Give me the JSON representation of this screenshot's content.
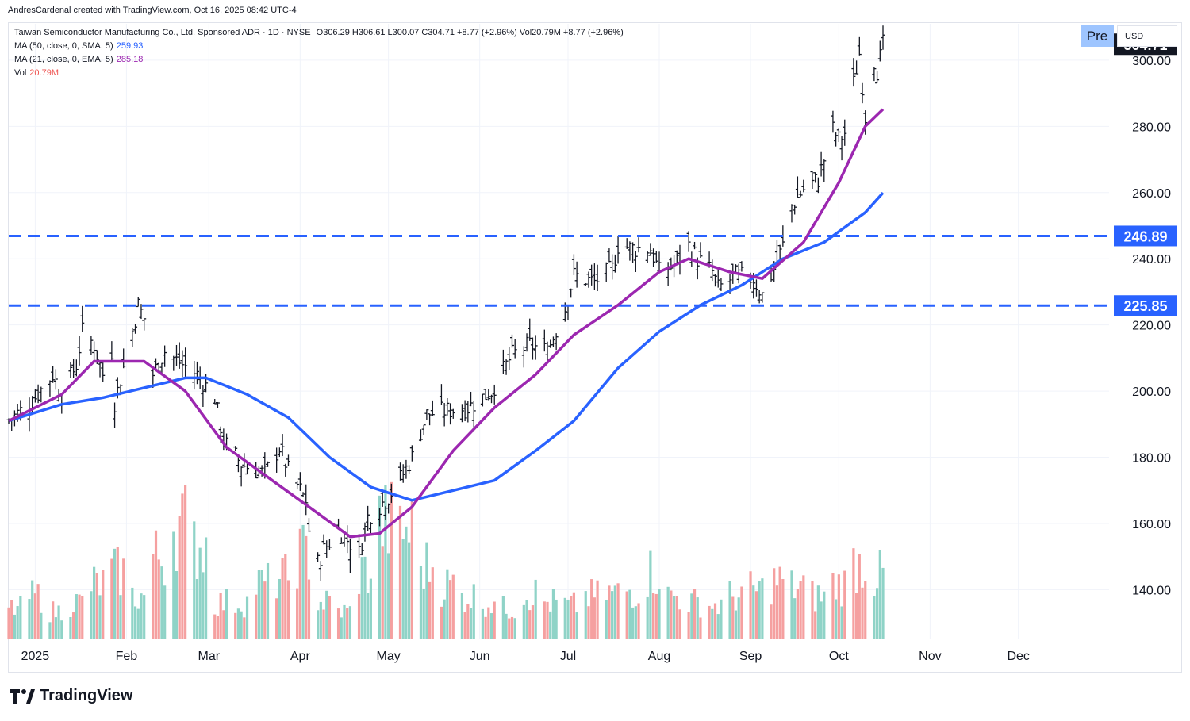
{
  "credit": "AndresCardenal created with TradingView.com, Oct 16, 2025 08:42 UTC-4",
  "badges": {
    "pre": "Pre",
    "currency": "USD"
  },
  "brand": {
    "name": "TradingView"
  },
  "legend": {
    "title": "Taiwan Semiconductor Manufacturing Co., Ltd. Sponsored ADR · 1D · NYSE",
    "ohlc": "O306.29 H306.61 L300.07 C304.71 +8.77 (+2.96%) Vol20.79M +8.77 (+2.96%)",
    "ma50_label": "MA (50, close, 0, SMA, 5)",
    "ma50_value": "259.93",
    "ma21_label": "MA (21, close, 0, EMA, 5)",
    "ma21_value": "285.18",
    "vol_label": "Vol",
    "vol_value": "20.79M"
  },
  "colors": {
    "ma50": "#2962ff",
    "ma21": "#9c27b0",
    "hline": "#2962ff",
    "vol_up": "#8fd3c7",
    "vol_down": "#f5a0a0",
    "bar": "#131722",
    "price_tag_bg": "#131722",
    "level_tag_bg": "#2962ff"
  },
  "chart_data": {
    "type": "ohlc",
    "symbol": "TSM",
    "price_axis": {
      "ticks": [
        "140.00",
        "160.00",
        "180.00",
        "200.00",
        "220.00",
        "240.00",
        "260.00",
        "280.00",
        "300.00"
      ],
      "range": [
        125,
        311
      ]
    },
    "time_axis": {
      "labels": [
        "2025",
        "Feb",
        "Mar",
        "Apr",
        "May",
        "Jun",
        "Jul",
        "Aug",
        "Sep",
        "Oct",
        "Nov",
        "Dec"
      ]
    },
    "last_price": "304.71",
    "horizontal_levels": [
      {
        "value": 246.89,
        "label": "246.89",
        "style": "dashed"
      },
      {
        "value": 225.85,
        "label": "225.85",
        "style": "dashed"
      }
    ],
    "price_path": [
      [
        "2024-12-23",
        191
      ],
      [
        "2024-12-31",
        197
      ],
      [
        "2025-01-07",
        205
      ],
      [
        "2025-01-10",
        199
      ],
      [
        "2025-01-15",
        208
      ],
      [
        "2025-01-17",
        218
      ],
      [
        "2025-01-21",
        214
      ],
      [
        "2025-01-24",
        205
      ],
      [
        "2025-01-27",
        212
      ],
      [
        "2025-02-03",
        218
      ],
      [
        "2025-02-05",
        226
      ],
      [
        "2025-02-07",
        222
      ],
      [
        "2025-01-27",
        193
      ],
      [
        "2025-02-10",
        205
      ],
      [
        "2025-02-14",
        212
      ],
      [
        "2025-02-20",
        208
      ],
      [
        "2025-02-25",
        205
      ],
      [
        "2025-03-03",
        198
      ],
      [
        "2025-03-06",
        185
      ],
      [
        "2025-03-12",
        178
      ],
      [
        "2025-03-17",
        176
      ],
      [
        "2025-03-20",
        175
      ],
      [
        "2025-03-25",
        183
      ],
      [
        "2025-03-28",
        176
      ],
      [
        "2025-04-03",
        167
      ],
      [
        "2025-04-04",
        158
      ],
      [
        "2025-04-07",
        148
      ],
      [
        "2025-04-09",
        152
      ],
      [
        "2025-04-14",
        158
      ],
      [
        "2025-04-21",
        151
      ],
      [
        "2025-04-24",
        162
      ],
      [
        "2025-05-01",
        168
      ],
      [
        "2025-05-06",
        175
      ],
      [
        "2025-05-09",
        180
      ],
      [
        "2025-05-14",
        193
      ],
      [
        "2025-05-20",
        194
      ],
      [
        "2025-05-28",
        195
      ],
      [
        "2025-06-05",
        200
      ],
      [
        "2025-06-12",
        211
      ],
      [
        "2025-06-18",
        214
      ],
      [
        "2025-06-24",
        212
      ],
      [
        "2025-06-30",
        225
      ],
      [
        "2025-07-03",
        235
      ],
      [
        "2025-07-10",
        233
      ],
      [
        "2025-07-16",
        237
      ],
      [
        "2025-07-18",
        244
      ],
      [
        "2025-07-24",
        243
      ],
      [
        "2025-07-29",
        243
      ],
      [
        "2025-08-01",
        236
      ],
      [
        "2025-08-06",
        238
      ],
      [
        "2025-08-11",
        244
      ],
      [
        "2025-08-14",
        240
      ],
      [
        "2025-08-19",
        236
      ],
      [
        "2025-08-21",
        231
      ],
      [
        "2025-08-27",
        235
      ],
      [
        "2025-09-02",
        234
      ],
      [
        "2025-09-05",
        229
      ],
      [
        "2025-09-09",
        237
      ],
      [
        "2025-09-12",
        244
      ],
      [
        "2025-09-15",
        256
      ],
      [
        "2025-09-19",
        261
      ],
      [
        "2025-09-24",
        264
      ],
      [
        "2025-09-29",
        279
      ],
      [
        "2025-10-01",
        276
      ],
      [
        "2025-10-03",
        278
      ],
      [
        "2025-10-06",
        293
      ],
      [
        "2025-10-08",
        302
      ],
      [
        "2025-10-10",
        283
      ],
      [
        "2025-10-13",
        300
      ],
      [
        "2025-10-14",
        297
      ],
      [
        "2025-10-16",
        304.71
      ]
    ],
    "ma50_path": [
      [
        "2024-12-23",
        191
      ],
      [
        "2025-01-10",
        196
      ],
      [
        "2025-01-24",
        198
      ],
      [
        "2025-02-07",
        201
      ],
      [
        "2025-02-21",
        204
      ],
      [
        "2025-02-28",
        204
      ],
      [
        "2025-03-14",
        199
      ],
      [
        "2025-03-28",
        192
      ],
      [
        "2025-04-11",
        180
      ],
      [
        "2025-04-25",
        171
      ],
      [
        "2025-05-09",
        167
      ],
      [
        "2025-05-23",
        170
      ],
      [
        "2025-06-06",
        173
      ],
      [
        "2025-06-20",
        182
      ],
      [
        "2025-07-03",
        191
      ],
      [
        "2025-07-18",
        207
      ],
      [
        "2025-08-01",
        218
      ],
      [
        "2025-08-15",
        226
      ],
      [
        "2025-08-29",
        232
      ],
      [
        "2025-09-12",
        240
      ],
      [
        "2025-09-26",
        245
      ],
      [
        "2025-10-10",
        254
      ],
      [
        "2025-10-16",
        259.93
      ]
    ],
    "ma21_path": [
      [
        "2024-12-23",
        191
      ],
      [
        "2025-01-10",
        199
      ],
      [
        "2025-01-21",
        209
      ],
      [
        "2025-02-07",
        209
      ],
      [
        "2025-02-21",
        200
      ],
      [
        "2025-03-07",
        183
      ],
      [
        "2025-03-21",
        174
      ],
      [
        "2025-04-04",
        165
      ],
      [
        "2025-04-18",
        156
      ],
      [
        "2025-04-28",
        157
      ],
      [
        "2025-05-09",
        165
      ],
      [
        "2025-05-23",
        182
      ],
      [
        "2025-06-06",
        195
      ],
      [
        "2025-06-20",
        205
      ],
      [
        "2025-07-03",
        217
      ],
      [
        "2025-07-18",
        226
      ],
      [
        "2025-08-01",
        236
      ],
      [
        "2025-08-11",
        240
      ],
      [
        "2025-08-25",
        236
      ],
      [
        "2025-09-05",
        234
      ],
      [
        "2025-09-19",
        245
      ],
      [
        "2025-10-01",
        263
      ],
      [
        "2025-10-10",
        280
      ],
      [
        "2025-10-16",
        285.18
      ]
    ],
    "volume": [
      [
        "Dec",
        10
      ],
      [
        "Jan",
        14
      ],
      [
        "Jan",
        9
      ],
      [
        "Jan",
        12
      ],
      [
        "Jan",
        18
      ],
      [
        "Jan",
        22
      ],
      [
        "Feb",
        14
      ],
      [
        "Feb",
        27
      ],
      [
        "Feb",
        38
      ],
      [
        "Feb",
        31
      ],
      [
        "Feb",
        12
      ],
      [
        "Mar",
        12
      ],
      [
        "Mar",
        18
      ],
      [
        "Mar",
        20
      ],
      [
        "Mar",
        28
      ],
      [
        "Mar",
        12
      ],
      [
        "Mar",
        9
      ],
      [
        "Apr",
        22
      ],
      [
        "Apr",
        38
      ],
      [
        "Apr",
        36
      ],
      [
        "Apr",
        24
      ],
      [
        "Apr",
        18
      ],
      [
        "May",
        14
      ],
      [
        "May",
        12
      ],
      [
        "May",
        10
      ],
      [
        "May",
        15
      ],
      [
        "Jun",
        12
      ],
      [
        "Jun",
        11
      ],
      [
        "Jun",
        14
      ],
      [
        "Jul",
        15
      ],
      [
        "Jul",
        16
      ],
      [
        "Jul",
        22
      ],
      [
        "Aug",
        14
      ],
      [
        "Aug",
        12
      ],
      [
        "Aug",
        11
      ],
      [
        "Sep",
        14
      ],
      [
        "Sep",
        16
      ],
      [
        "Sep",
        19
      ],
      [
        "Sep",
        17
      ],
      [
        "Oct",
        14
      ],
      [
        "Oct",
        18
      ],
      [
        "Oct",
        25
      ],
      [
        "Oct",
        20.79
      ]
    ]
  }
}
